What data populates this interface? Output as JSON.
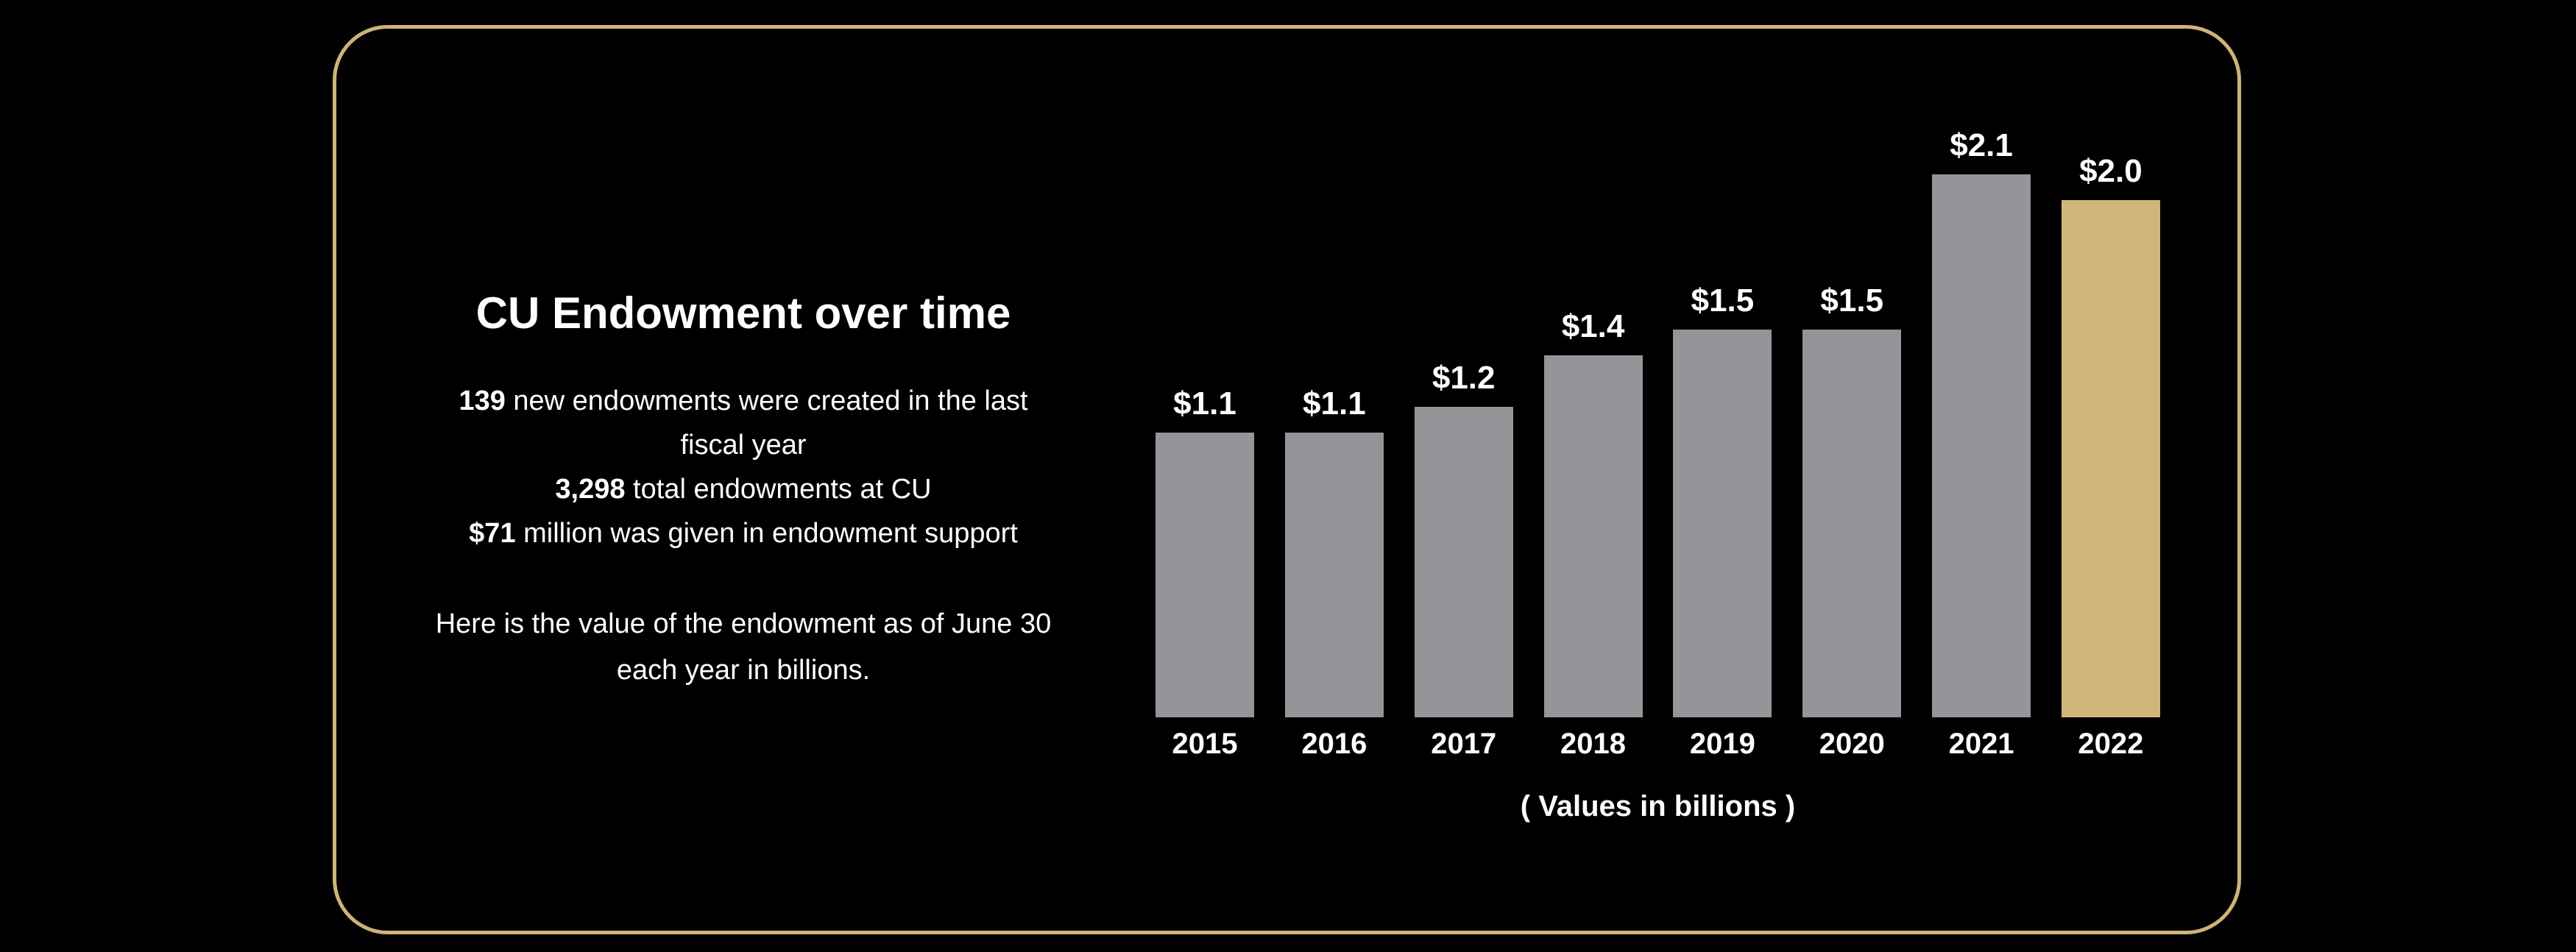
{
  "colors": {
    "background": "#000000",
    "frame_border": "#cdb572",
    "bar_default": "#939599",
    "bar_highlight": "#d1b67a",
    "text": "#ffffff"
  },
  "panel": {
    "title": "CU Endowment over time",
    "stat_lines": [
      {
        "lead": "139",
        "rest": " new endowments were created in the last"
      },
      {
        "lead": "",
        "rest": "fiscal year"
      },
      {
        "lead": "3,298",
        "rest": " total endowments at CU"
      },
      {
        "lead": "$71",
        "rest": " million was given in endowment support"
      }
    ],
    "note_lines": [
      "Here is the value of the endowment as of June 30",
      "each year in billions."
    ]
  },
  "chart_data": {
    "type": "bar",
    "title": "CU Endowment over time",
    "categories": [
      "2015",
      "2016",
      "2017",
      "2018",
      "2019",
      "2020",
      "2021",
      "2022"
    ],
    "values": [
      1.1,
      1.1,
      1.2,
      1.4,
      1.5,
      1.5,
      2.1,
      2.0
    ],
    "value_labels": [
      "$1.1",
      "$1.1",
      "$1.2",
      "$1.4",
      "$1.5",
      "$1.5",
      "$2.1",
      "$2.0"
    ],
    "highlight_category": "2022",
    "bar_color_default": "#939599",
    "bar_color_highlight": "#d1b67a",
    "caption": "( Values in billions )",
    "xlabel": "",
    "ylabel": "",
    "ylim": [
      0,
      2.2
    ],
    "grid": false,
    "legend": "none"
  }
}
